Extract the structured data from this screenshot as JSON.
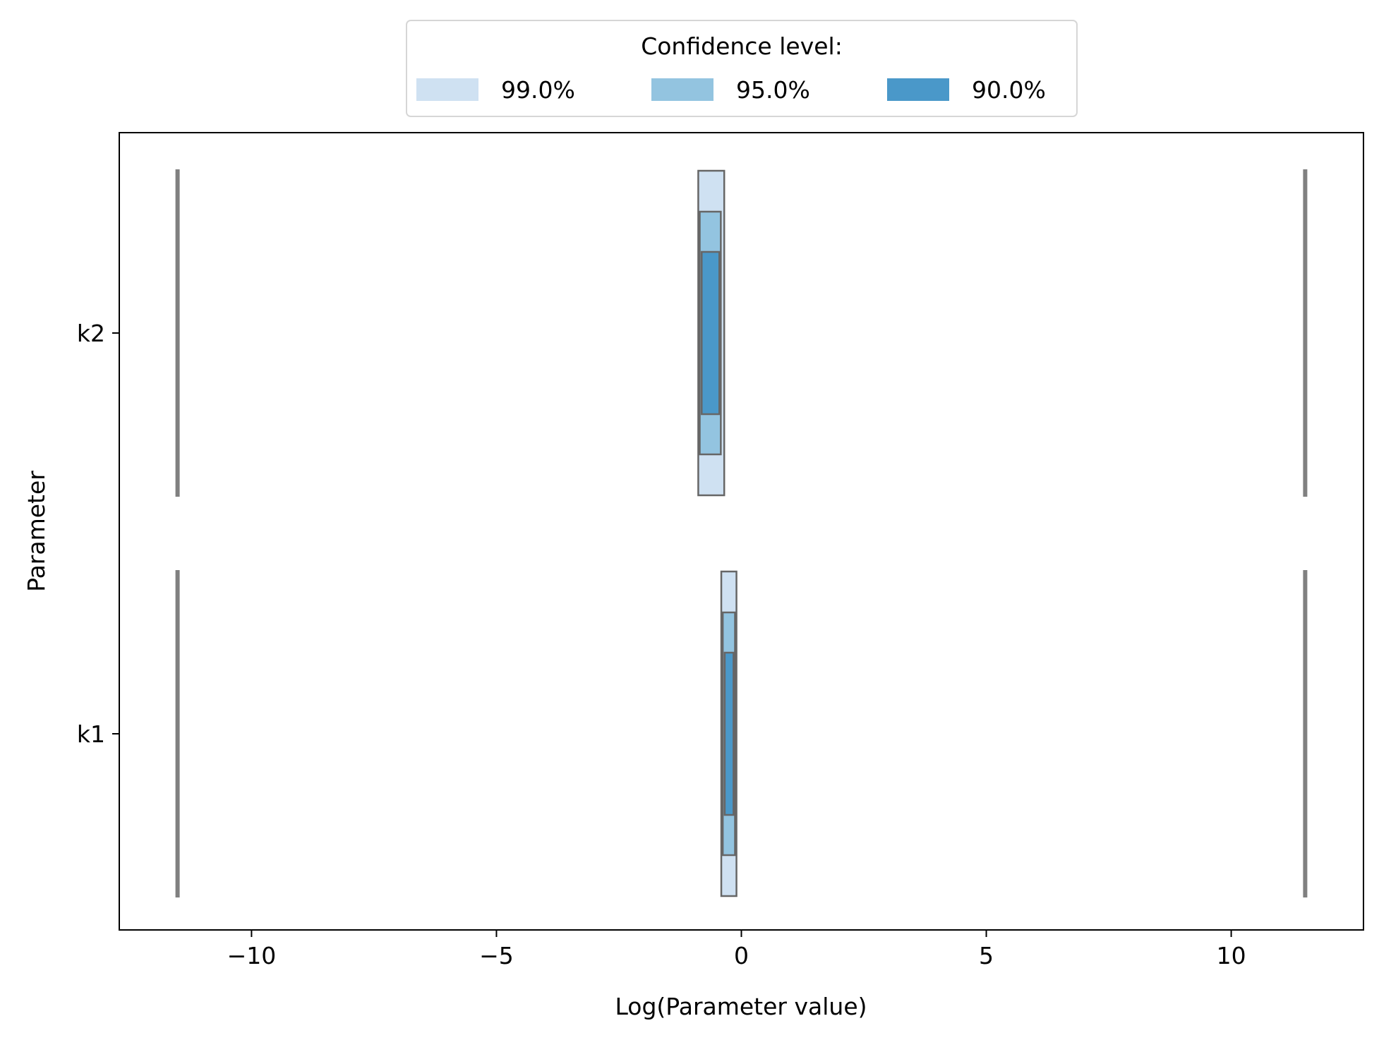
{
  "chart_data": {
    "type": "profile-likelihood-ci",
    "xlabel": "Log(Parameter value)",
    "ylabel": "Parameter",
    "xlim": [
      -12.7,
      12.7
    ],
    "x_ticks": [
      -10,
      -5,
      0,
      5,
      10
    ],
    "x_tick_labels": [
      "−10",
      "−5",
      "0",
      "5",
      "10"
    ],
    "categories": [
      "k2",
      "k1"
    ],
    "legend": {
      "title": "Confidence level:",
      "position": "top-center, above plot",
      "entries": [
        {
          "label": "99.0%",
          "color": "#cfe1f2"
        },
        {
          "label": "95.0%",
          "color": "#93c4e0"
        },
        {
          "label": "90.0%",
          "color": "#4a98c9"
        }
      ]
    },
    "bounds": {
      "lower": -11.51,
      "upper": 11.51,
      "color": "#808080"
    },
    "series": [
      {
        "parameter": "k2",
        "intervals": [
          {
            "level": "99.0%",
            "lower": -0.88,
            "upper": -0.35
          },
          {
            "level": "95.0%",
            "lower": -0.85,
            "upper": -0.42
          },
          {
            "level": "90.0%",
            "lower": -0.81,
            "upper": -0.45
          }
        ]
      },
      {
        "parameter": "k1",
        "intervals": [
          {
            "level": "99.0%",
            "lower": -0.41,
            "upper": -0.1
          },
          {
            "level": "95.0%",
            "lower": -0.38,
            "upper": -0.13
          },
          {
            "level": "90.0%",
            "lower": -0.34,
            "upper": -0.16
          }
        ]
      }
    ],
    "grid": false
  }
}
